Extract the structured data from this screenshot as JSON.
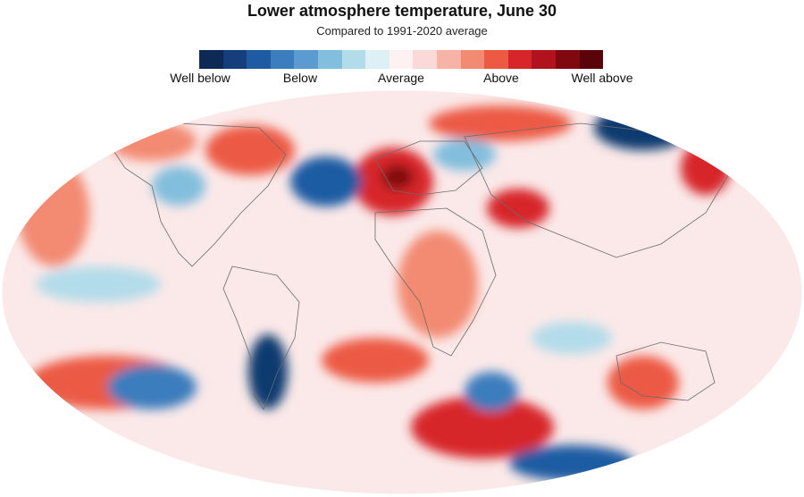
{
  "header": {
    "title": "Lower atmosphere temperature, June 30",
    "subtitle": "Compared to 1991-2020 average"
  },
  "legend": {
    "colors": [
      "#0d2a56",
      "#143f7c",
      "#1f5ba3",
      "#3b7dbd",
      "#5c9bd0",
      "#82bede",
      "#b3dcea",
      "#dcf0f6",
      "#fdf1f1",
      "#fcd9d9",
      "#f7b4a6",
      "#f38a72",
      "#ec5a44",
      "#d7262a",
      "#b1121d",
      "#82080f",
      "#5a0308"
    ],
    "labels": [
      "Well below",
      "Below",
      "Average",
      "Above",
      "Well above"
    ]
  },
  "map": {
    "ocean_color": "#fbe9e9",
    "border_color": "#6a6a6a",
    "warm_color": "#e8503f",
    "hot_color": "#9c0c12",
    "cool_color": "#6aa7d3",
    "cold_color": "#0f3a70"
  }
}
